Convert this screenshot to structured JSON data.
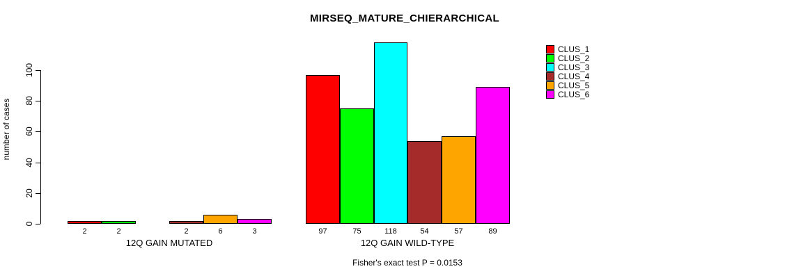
{
  "chart_data": {
    "type": "bar",
    "title": "MIRSEQ_MATURE_CHIERARCHICAL",
    "ylabel": "number of cases",
    "ylim": [
      0,
      100
    ],
    "yticks": [
      0,
      20,
      40,
      60,
      80,
      100
    ],
    "grid": false,
    "legend_position": "right-top",
    "categories": [
      "12Q GAIN MUTATED",
      "12Q GAIN WILD-TYPE"
    ],
    "series": [
      {
        "name": "CLUS_1",
        "color": "#FF0000",
        "values": [
          2,
          97
        ],
        "labels": [
          "2",
          "97"
        ]
      },
      {
        "name": "CLUS_2",
        "color": "#00FF00",
        "values": [
          2,
          75
        ],
        "labels": [
          "2",
          "75"
        ]
      },
      {
        "name": "CLUS_3",
        "color": "#00FFFF",
        "values": [
          0,
          118
        ],
        "labels": [
          "",
          "118"
        ]
      },
      {
        "name": "CLUS_4",
        "color": "#A52A2A",
        "values": [
          2,
          54
        ],
        "labels": [
          "2",
          "54"
        ]
      },
      {
        "name": "CLUS_5",
        "color": "#FFA500",
        "values": [
          6,
          57
        ],
        "labels": [
          "6",
          "57"
        ]
      },
      {
        "name": "CLUS_6",
        "color": "#FF00FF",
        "values": [
          3,
          89
        ],
        "labels": [
          "3",
          "89"
        ]
      }
    ],
    "annotation": "Fisher's exact test P = 0.0153",
    "colors": {
      "axis": "#000000",
      "bar_border": "#000000",
      "background": "#FFFFFF"
    }
  }
}
